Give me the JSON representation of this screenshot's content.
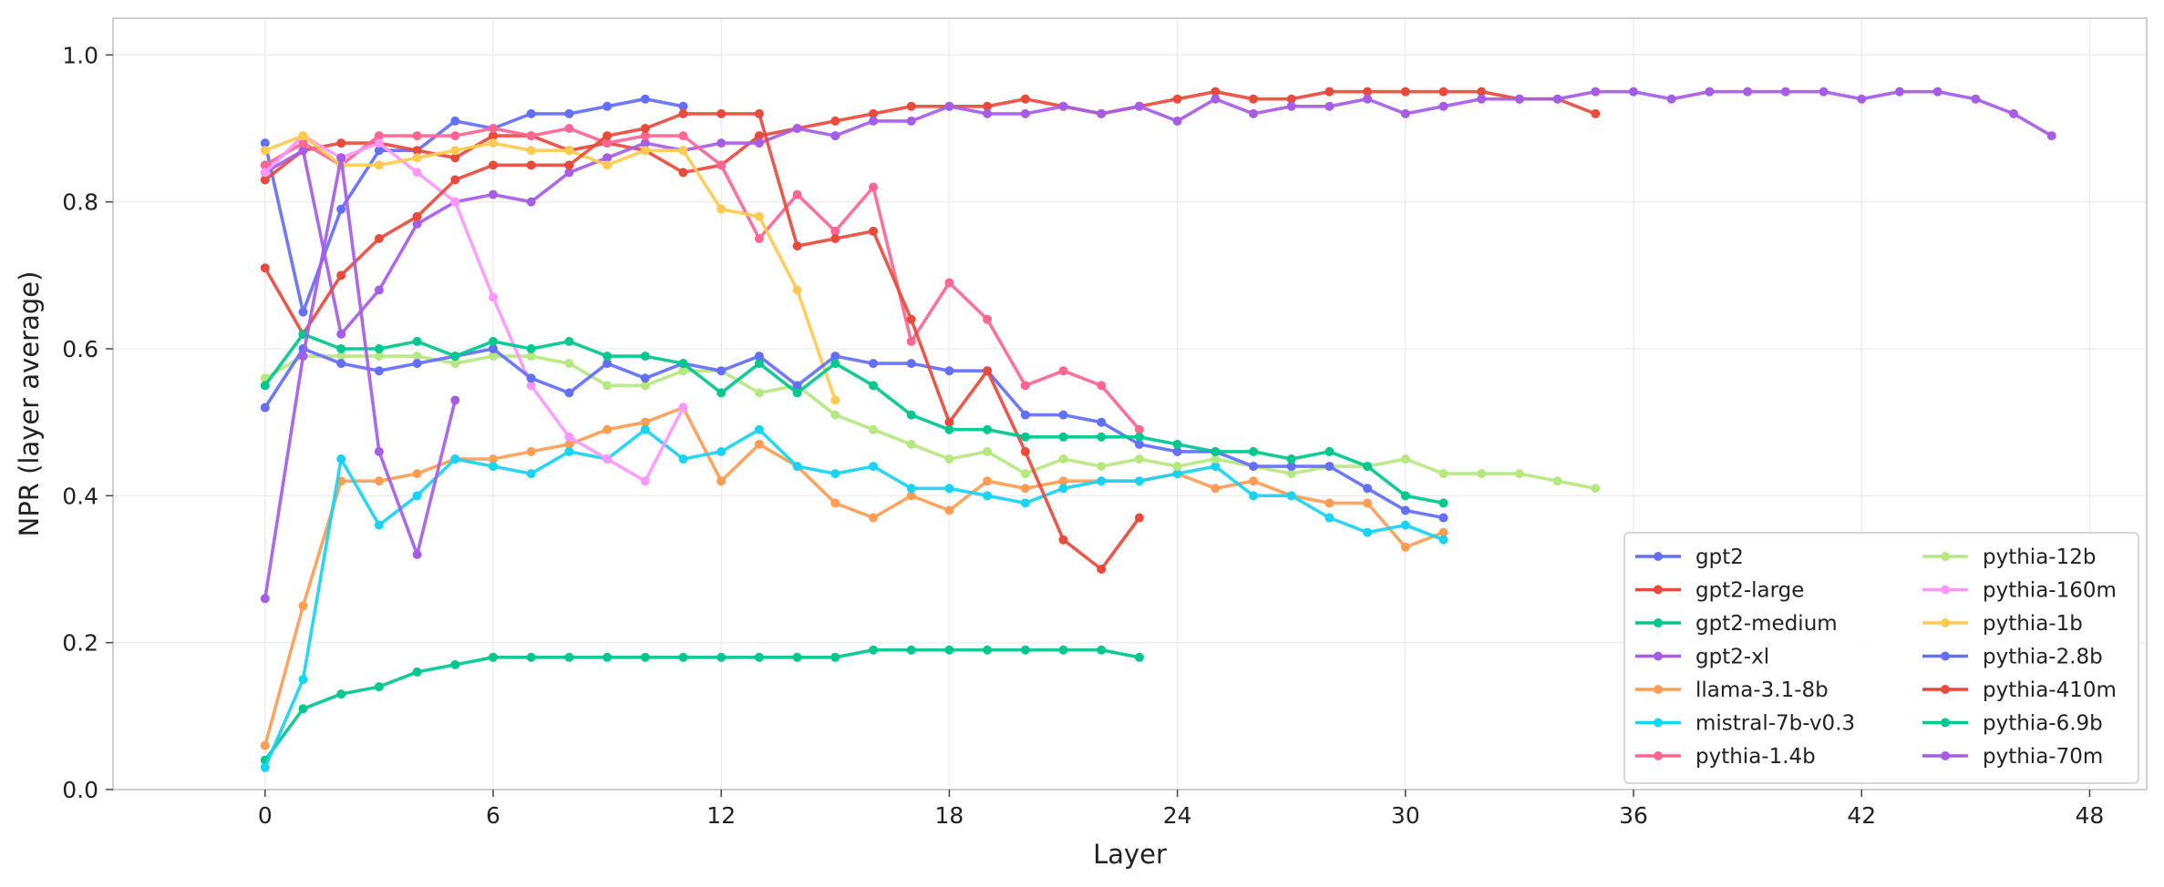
{
  "chart_data": {
    "type": "line",
    "title": "",
    "xlabel": "Layer",
    "ylabel": "NPR (layer average)",
    "xlim": [
      -4,
      49.5
    ],
    "ylim": [
      0.0,
      1.05
    ],
    "xticks": [
      0,
      6,
      12,
      18,
      24,
      30,
      36,
      42,
      48
    ],
    "yticks": [
      0.0,
      0.2,
      0.4,
      0.6,
      0.8,
      1.0
    ],
    "xtick_labels": [
      "0",
      "6",
      "12",
      "18",
      "24",
      "30",
      "36",
      "42",
      "48"
    ],
    "ytick_labels": [
      "0.0",
      "0.2",
      "0.4",
      "0.6",
      "0.8",
      "1.0"
    ],
    "grid": true,
    "legend_position": "lower-right",
    "legend_columns": 2,
    "series": [
      {
        "name": "gpt2",
        "color": "#636efa",
        "x": [
          0,
          1,
          2,
          3,
          4,
          5,
          6,
          7,
          8,
          9,
          10,
          11
        ],
        "y": [
          0.88,
          0.65,
          0.79,
          0.87,
          0.87,
          0.91,
          0.9,
          0.92,
          0.92,
          0.93,
          0.94,
          0.93
        ]
      },
      {
        "name": "gpt2-large",
        "color": "#e84b3c",
        "x": [
          0,
          1,
          2,
          3,
          4,
          5,
          6,
          7,
          8,
          9,
          10,
          11,
          12,
          13,
          14,
          15,
          16,
          17,
          18,
          19,
          20,
          21,
          22,
          23,
          24,
          25,
          26,
          27,
          28,
          29,
          30,
          31,
          32,
          33,
          34,
          35
        ],
        "y": [
          0.83,
          0.87,
          0.88,
          0.88,
          0.87,
          0.86,
          0.89,
          0.89,
          0.87,
          0.88,
          0.87,
          0.84,
          0.85,
          0.89,
          0.9,
          0.91,
          0.92,
          0.93,
          0.93,
          0.93,
          0.94,
          0.93,
          0.92,
          0.93,
          0.94,
          0.95,
          0.94,
          0.94,
          0.95,
          0.95,
          0.95,
          0.95,
          0.95,
          0.94,
          0.94,
          0.92
        ]
      },
      {
        "name": "gpt2-medium",
        "color": "#00c78e",
        "x": [
          0,
          1,
          2,
          3,
          4,
          5,
          6,
          7,
          8,
          9,
          10,
          11,
          12,
          13,
          14,
          15,
          16,
          17,
          18,
          19,
          20,
          21,
          22,
          23
        ],
        "y": [
          0.04,
          0.11,
          0.13,
          0.14,
          0.16,
          0.17,
          0.18,
          0.18,
          0.18,
          0.18,
          0.18,
          0.18,
          0.18,
          0.18,
          0.18,
          0.18,
          0.19,
          0.19,
          0.19,
          0.19,
          0.19,
          0.19,
          0.19,
          0.18
        ]
      },
      {
        "name": "gpt2-xl",
        "color": "#a65de6",
        "x": [
          0,
          1,
          2,
          3,
          4,
          5,
          6,
          7,
          8,
          9,
          10,
          11,
          12,
          13,
          14,
          15,
          16,
          17,
          18,
          19,
          20,
          21,
          22,
          23,
          24,
          25,
          26,
          27,
          28,
          29,
          30,
          31,
          32,
          33,
          34,
          35,
          36,
          37,
          38,
          39,
          40,
          41,
          42,
          43,
          44,
          45,
          46,
          47
        ],
        "y": [
          0.84,
          0.87,
          0.62,
          0.68,
          0.77,
          0.8,
          0.81,
          0.8,
          0.84,
          0.86,
          0.88,
          0.87,
          0.88,
          0.88,
          0.9,
          0.89,
          0.91,
          0.91,
          0.93,
          0.92,
          0.92,
          0.93,
          0.92,
          0.93,
          0.91,
          0.94,
          0.92,
          0.93,
          0.93,
          0.94,
          0.92,
          0.93,
          0.94,
          0.94,
          0.94,
          0.95,
          0.95,
          0.94,
          0.95,
          0.95,
          0.95,
          0.95,
          0.94,
          0.95,
          0.95,
          0.94,
          0.92,
          0.89
        ]
      },
      {
        "name": "llama-3.1-8b",
        "color": "#ff9d55",
        "x": [
          0,
          1,
          2,
          3,
          4,
          5,
          6,
          7,
          8,
          9,
          10,
          11,
          12,
          13,
          14,
          15,
          16,
          17,
          18,
          19,
          20,
          21,
          22,
          23,
          24,
          25,
          26,
          27,
          28,
          29,
          30,
          31
        ],
        "y": [
          0.06,
          0.25,
          0.42,
          0.42,
          0.43,
          0.45,
          0.45,
          0.46,
          0.47,
          0.49,
          0.5,
          0.52,
          0.42,
          0.47,
          0.44,
          0.39,
          0.37,
          0.4,
          0.38,
          0.42,
          0.41,
          0.42,
          0.42,
          0.42,
          0.43,
          0.41,
          0.42,
          0.4,
          0.39,
          0.39,
          0.33,
          0.35
        ]
      },
      {
        "name": "mistral-7b-v0.3",
        "color": "#19d3f3",
        "x": [
          0,
          1,
          2,
          3,
          4,
          5,
          6,
          7,
          8,
          9,
          10,
          11,
          12,
          13,
          14,
          15,
          16,
          17,
          18,
          19,
          20,
          21,
          22,
          23,
          24,
          25,
          26,
          27,
          28,
          29,
          30,
          31
        ],
        "y": [
          0.03,
          0.15,
          0.45,
          0.36,
          0.4,
          0.45,
          0.44,
          0.43,
          0.46,
          0.45,
          0.49,
          0.45,
          0.46,
          0.49,
          0.44,
          0.43,
          0.44,
          0.41,
          0.41,
          0.4,
          0.39,
          0.41,
          0.42,
          0.42,
          0.43,
          0.44,
          0.4,
          0.4,
          0.37,
          0.35,
          0.36,
          0.34
        ]
      },
      {
        "name": "pythia-1.4b",
        "color": "#ff6692",
        "x": [
          0,
          1,
          2,
          3,
          4,
          5,
          6,
          7,
          8,
          9,
          10,
          11,
          12,
          13,
          14,
          15,
          16,
          17,
          18,
          19,
          20,
          21,
          22,
          23
        ],
        "y": [
          0.85,
          0.88,
          0.85,
          0.89,
          0.89,
          0.89,
          0.9,
          0.89,
          0.9,
          0.88,
          0.89,
          0.89,
          0.85,
          0.75,
          0.81,
          0.76,
          0.82,
          0.61,
          0.69,
          0.64,
          0.55,
          0.57,
          0.55,
          0.49
        ]
      },
      {
        "name": "pythia-12b",
        "color": "#b6e880",
        "x": [
          0,
          1,
          2,
          3,
          4,
          5,
          6,
          7,
          8,
          9,
          10,
          11,
          12,
          13,
          14,
          15,
          16,
          17,
          18,
          19,
          20,
          21,
          22,
          23,
          24,
          25,
          26,
          27,
          28,
          29,
          30,
          31,
          32,
          33,
          34,
          35
        ],
        "y": [
          0.56,
          0.59,
          0.59,
          0.59,
          0.59,
          0.58,
          0.59,
          0.59,
          0.58,
          0.55,
          0.55,
          0.57,
          0.57,
          0.54,
          0.55,
          0.51,
          0.49,
          0.47,
          0.45,
          0.46,
          0.43,
          0.45,
          0.44,
          0.45,
          0.44,
          0.45,
          0.44,
          0.43,
          0.44,
          0.44,
          0.45,
          0.43,
          0.43,
          0.43,
          0.42,
          0.41
        ]
      },
      {
        "name": "pythia-160m",
        "color": "#ff97ff",
        "x": [
          0,
          1,
          2,
          3,
          4,
          5,
          6,
          7,
          8,
          9,
          10,
          11
        ],
        "y": [
          0.84,
          0.89,
          0.86,
          0.88,
          0.84,
          0.8,
          0.67,
          0.55,
          0.48,
          0.45,
          0.42,
          0.52
        ]
      },
      {
        "name": "pythia-1b",
        "color": "#fecb52",
        "x": [
          0,
          1,
          2,
          3,
          4,
          5,
          6,
          7,
          8,
          9,
          10,
          11,
          12,
          13,
          14,
          15
        ],
        "y": [
          0.87,
          0.89,
          0.85,
          0.85,
          0.86,
          0.87,
          0.88,
          0.87,
          0.87,
          0.85,
          0.87,
          0.87,
          0.79,
          0.78,
          0.68,
          0.53
        ]
      },
      {
        "name": "pythia-2.8b",
        "color": "#636efa",
        "x": [
          0,
          1,
          2,
          3,
          4,
          5,
          6,
          7,
          8,
          9,
          10,
          11,
          12,
          13,
          14,
          15,
          16,
          17,
          18,
          19,
          20,
          21,
          22,
          23,
          24,
          25,
          26,
          27,
          28,
          29,
          30,
          31
        ],
        "y": [
          0.52,
          0.6,
          0.58,
          0.57,
          0.58,
          0.59,
          0.6,
          0.56,
          0.54,
          0.58,
          0.56,
          0.58,
          0.57,
          0.59,
          0.55,
          0.59,
          0.58,
          0.58,
          0.57,
          0.57,
          0.51,
          0.51,
          0.5,
          0.47,
          0.46,
          0.46,
          0.44,
          0.44,
          0.44,
          0.41,
          0.38,
          0.37
        ]
      },
      {
        "name": "pythia-410m",
        "color": "#e84b3c",
        "x": [
          0,
          1,
          2,
          3,
          4,
          5,
          6,
          7,
          8,
          9,
          10,
          11,
          12,
          13,
          14,
          15,
          16,
          17,
          18,
          19,
          20,
          21,
          22,
          23
        ],
        "y": [
          0.71,
          0.62,
          0.7,
          0.75,
          0.78,
          0.83,
          0.85,
          0.85,
          0.85,
          0.89,
          0.9,
          0.92,
          0.92,
          0.92,
          0.74,
          0.75,
          0.76,
          0.64,
          0.5,
          0.57,
          0.46,
          0.34,
          0.3,
          0.37
        ]
      },
      {
        "name": "pythia-6.9b",
        "color": "#00c78e",
        "x": [
          0,
          1,
          2,
          3,
          4,
          5,
          6,
          7,
          8,
          9,
          10,
          11,
          12,
          13,
          14,
          15,
          16,
          17,
          18,
          19,
          20,
          21,
          22,
          23,
          24,
          25,
          26,
          27,
          28,
          29,
          30,
          31
        ],
        "y": [
          0.55,
          0.62,
          0.6,
          0.6,
          0.61,
          0.59,
          0.61,
          0.6,
          0.61,
          0.59,
          0.59,
          0.58,
          0.54,
          0.58,
          0.54,
          0.58,
          0.55,
          0.51,
          0.49,
          0.49,
          0.48,
          0.48,
          0.48,
          0.48,
          0.47,
          0.46,
          0.46,
          0.45,
          0.46,
          0.44,
          0.4,
          0.39
        ]
      },
      {
        "name": "pythia-70m",
        "color": "#a65de6",
        "x": [
          0,
          1,
          2,
          3,
          4,
          5
        ],
        "y": [
          0.26,
          0.59,
          0.86,
          0.46,
          0.32,
          0.53
        ]
      }
    ]
  }
}
